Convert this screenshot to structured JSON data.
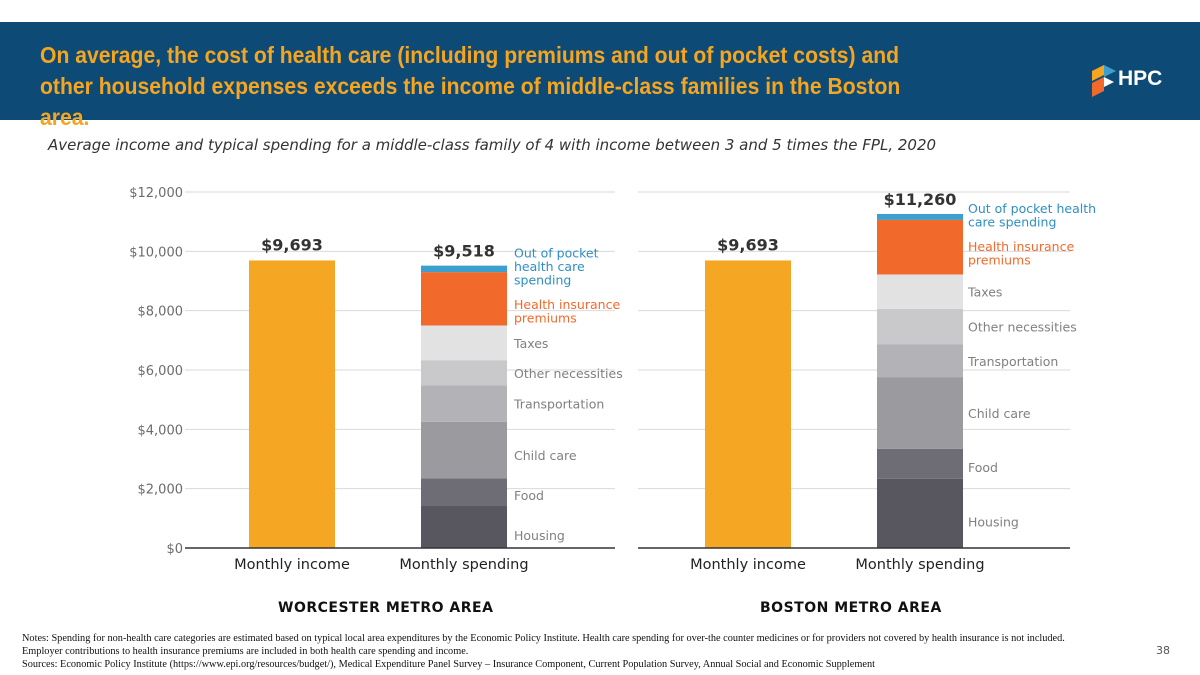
{
  "header": {
    "title": "On average, the cost of health care (including premiums and out of pocket costs) and other household expenses exceeds the income of middle-class families in the Boston area.",
    "logo_text": "HPC"
  },
  "subtitle": "Average income and typical spending for a middle-class family of 4 with income between 3 and 5 times the FPL, 2020",
  "colors": {
    "income": "#f5a623",
    "Housing": "#58575f",
    "Food": "#6e6d75",
    "Child care": "#9b9a9f",
    "Transportation": "#b3b2b6",
    "Other necessities": "#c9c9cb",
    "Taxes": "#e2e2e3",
    "Health insurance premiums": "#f26a2b",
    "Out of pocket health care spending": "#3c9fce"
  },
  "chart_data": [
    {
      "type": "bar",
      "region": "WORCESTER METRO AREA",
      "categories": [
        "Monthly income",
        "Monthly spending"
      ],
      "ylim": [
        0,
        12000
      ],
      "yticks": [
        "$0",
        "$2,000",
        "$4,000",
        "$6,000",
        "$8,000",
        "$10,000",
        "$12,000"
      ],
      "grid": true,
      "income": {
        "value": 9693,
        "label": "$9,693"
      },
      "spending_total_label": "$9,518",
      "stack": [
        {
          "name": "Housing",
          "label_lines": [
            "Housing"
          ],
          "value": 1430
        },
        {
          "name": "Food",
          "label_lines": [
            "Food"
          ],
          "value": 920
        },
        {
          "name": "Child care",
          "label_lines": [
            "Child care"
          ],
          "value": 1900
        },
        {
          "name": "Transportation",
          "label_lines": [
            "Transportation"
          ],
          "value": 1230
        },
        {
          "name": "Other necessities",
          "label_lines": [
            "Other necessities"
          ],
          "value": 850
        },
        {
          "name": "Taxes",
          "label_lines": [
            "Taxes"
          ],
          "value": 1170
        },
        {
          "name": "Health insurance premiums",
          "label_lines": [
            "Health insurance",
            "premiums"
          ],
          "value": 1800
        },
        {
          "name": "Out of pocket health care spending",
          "label_lines": [
            "Out of pocket",
            "health care",
            "spending"
          ],
          "value": 218
        }
      ]
    },
    {
      "type": "bar",
      "region": "BOSTON METRO AREA",
      "categories": [
        "Monthly income",
        "Monthly spending"
      ],
      "ylim": [
        0,
        12000
      ],
      "grid": true,
      "income": {
        "value": 9693,
        "label": "$9,693"
      },
      "spending_total_label": "$11,260",
      "stack": [
        {
          "name": "Housing",
          "label_lines": [
            "Housing"
          ],
          "value": 2330
        },
        {
          "name": "Food",
          "label_lines": [
            "Food"
          ],
          "value": 1010
        },
        {
          "name": "Child care",
          "label_lines": [
            "Child care"
          ],
          "value": 2420
        },
        {
          "name": "Transportation",
          "label_lines": [
            "Transportation"
          ],
          "value": 1100
        },
        {
          "name": "Other necessities",
          "label_lines": [
            "Other necessities"
          ],
          "value": 1200
        },
        {
          "name": "Taxes",
          "label_lines": [
            "Taxes"
          ],
          "value": 1160
        },
        {
          "name": "Health insurance premiums",
          "label_lines": [
            "Health insurance",
            "premiums"
          ],
          "value": 1840
        },
        {
          "name": "Out of pocket health care spending",
          "label_lines": [
            "Out of pocket health",
            "care spending"
          ],
          "value": 200
        }
      ]
    }
  ],
  "notes": [
    "Notes: Spending for non-health care categories are estimated based on typical local area expenditures by the Economic Policy Institute. Health care spending for over-the counter medicines or for providers not covered by health insurance is not included. Employer contributions to health insurance premiums are included in both health care spending and income.",
    "Sources: Economic Policy Institute (https://www.epi.org/resources/budget/), Medical Expenditure Panel Survey – Insurance Component, Current Population Survey, Annual Social and Economic Supplement"
  ],
  "page_number": "38"
}
